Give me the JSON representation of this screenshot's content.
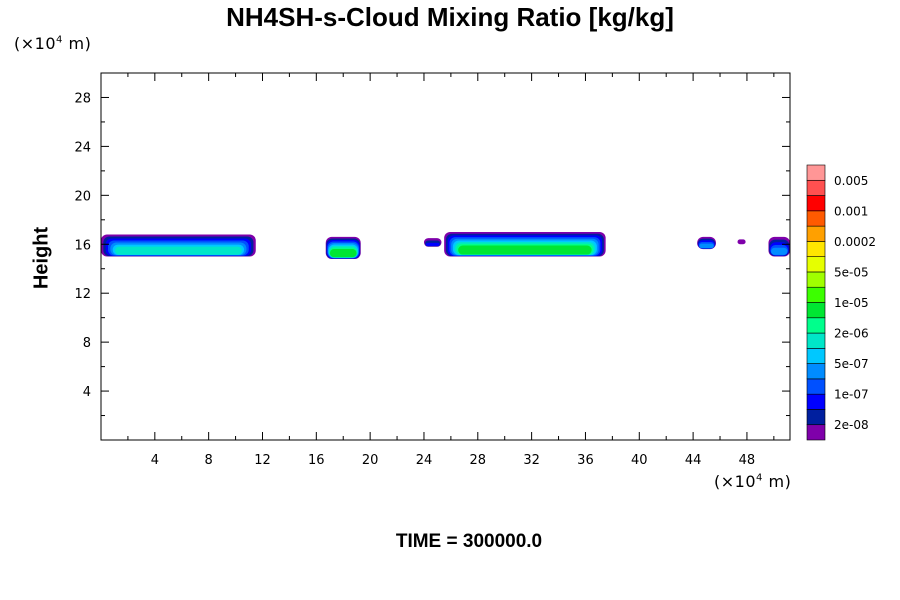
{
  "chart_data": {
    "type": "heatmap",
    "title": "NH4SH-s-Cloud Mixing Ratio [kg/kg]",
    "ylabel": "Height",
    "xlabel": "",
    "x_unit": {
      "base": "(×10",
      "exp": "4",
      "suffix": " m)"
    },
    "y_unit": {
      "base": "(×10",
      "exp": "4",
      "suffix": " m)"
    },
    "xlim": [
      0,
      51.2
    ],
    "ylim": [
      0,
      30
    ],
    "x_ticks": [
      4,
      8,
      12,
      16,
      20,
      24,
      28,
      32,
      36,
      40,
      44,
      48
    ],
    "y_ticks": [
      4,
      8,
      12,
      16,
      20,
      24,
      28
    ],
    "time_label": "TIME = 300000.0",
    "colorbar": {
      "colors": [
        "#7f00aa",
        "#001f9f",
        "#0000ff",
        "#0050ff",
        "#008cff",
        "#00c8ff",
        "#00e6c8",
        "#00ff8c",
        "#00e632",
        "#3cff00",
        "#a0ff00",
        "#e6ff00",
        "#ffe600",
        "#ffa000",
        "#ff5a00",
        "#ff0000",
        "#ff5050",
        "#ff9696"
      ],
      "labels": [
        "2e-08",
        "1e-07",
        "5e-07",
        "2e-06",
        "1e-05",
        "5e-05",
        "0.0002",
        "0.001",
        "0.005"
      ]
    },
    "cloud_layers": [
      {
        "x": [
          0.0,
          11.5
        ],
        "y": [
          15.0,
          16.8
        ],
        "peak": "2e-06"
      },
      {
        "x": [
          16.7,
          19.3
        ],
        "y": [
          14.8,
          16.6
        ],
        "peak": "1e-05"
      },
      {
        "x": [
          24.0,
          25.3
        ],
        "y": [
          15.8,
          16.5
        ],
        "peak": "1e-07"
      },
      {
        "x": [
          25.5,
          37.5
        ],
        "y": [
          15.0,
          17.0
        ],
        "peak": "1e-05"
      },
      {
        "x": [
          44.3,
          45.7
        ],
        "y": [
          15.6,
          16.6
        ],
        "peak": "5e-07"
      },
      {
        "x": [
          47.3,
          47.9
        ],
        "y": [
          16.0,
          16.4
        ],
        "peak": "2e-08"
      },
      {
        "x": [
          49.6,
          51.2
        ],
        "y": [
          15.0,
          16.6
        ],
        "peak": "5e-07"
      }
    ]
  }
}
